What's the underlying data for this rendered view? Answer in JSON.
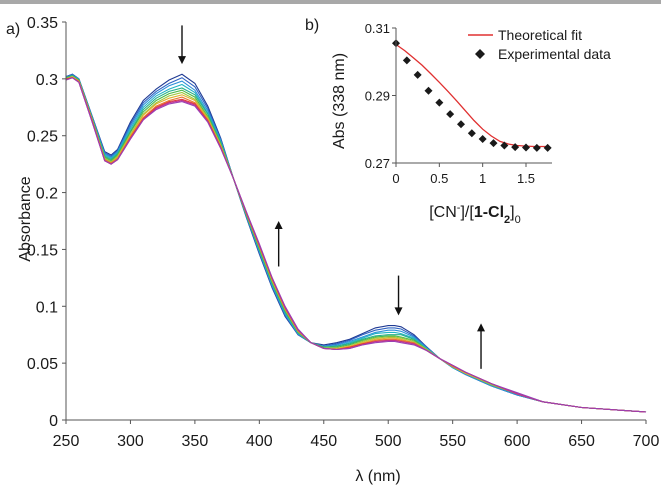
{
  "chart_data": [
    {
      "panel_label": "a)",
      "type": "line",
      "xlabel": "λ (nm)",
      "ylabel": "Absorbance",
      "xlim": [
        250,
        700
      ],
      "ylim": [
        0,
        0.35
      ],
      "xticks": [
        250,
        300,
        350,
        400,
        450,
        500,
        550,
        600,
        650,
        700
      ],
      "yticks": [
        0,
        0.05,
        0.1,
        0.15,
        0.2,
        0.25,
        0.3,
        0.35
      ],
      "xtick_labels": [
        "250",
        "300",
        "350",
        "400",
        "450",
        "500",
        "550",
        "600",
        "650",
        "700"
      ],
      "ytick_labels": [
        "0",
        "0.05",
        "0.1",
        "0.15",
        "0.2",
        "0.25",
        "0.3",
        "0.35"
      ],
      "grid": false,
      "x": [
        250,
        255,
        260,
        270,
        280,
        285,
        290,
        300,
        310,
        320,
        330,
        340,
        350,
        360,
        370,
        380,
        390,
        400,
        410,
        420,
        430,
        440,
        450,
        460,
        470,
        480,
        490,
        500,
        505,
        510,
        520,
        530,
        540,
        550,
        560,
        580,
        600,
        620,
        650,
        700
      ],
      "series": [
        {
          "color": "#1f3a93",
          "values": [
            0.302,
            0.304,
            0.3,
            0.268,
            0.236,
            0.233,
            0.238,
            0.262,
            0.281,
            0.291,
            0.299,
            0.304,
            0.296,
            0.276,
            0.248,
            0.212,
            0.178,
            0.146,
            0.116,
            0.091,
            0.075,
            0.068,
            0.066,
            0.068,
            0.071,
            0.076,
            0.081,
            0.083,
            0.083,
            0.082,
            0.075,
            0.064,
            0.054,
            0.046,
            0.04,
            0.03,
            0.022,
            0.016,
            0.011,
            0.007
          ]
        },
        {
          "color": "#2e63c4",
          "values": [
            0.302,
            0.304,
            0.3,
            0.268,
            0.235,
            0.232,
            0.237,
            0.26,
            0.279,
            0.289,
            0.296,
            0.301,
            0.293,
            0.274,
            0.247,
            0.212,
            0.179,
            0.147,
            0.117,
            0.092,
            0.075,
            0.068,
            0.065,
            0.067,
            0.07,
            0.075,
            0.079,
            0.081,
            0.081,
            0.08,
            0.074,
            0.064,
            0.054,
            0.046,
            0.04,
            0.03,
            0.022,
            0.016,
            0.011,
            0.007
          ]
        },
        {
          "color": "#2b8fd9",
          "values": [
            0.301,
            0.303,
            0.3,
            0.267,
            0.234,
            0.231,
            0.236,
            0.258,
            0.277,
            0.287,
            0.294,
            0.298,
            0.29,
            0.272,
            0.246,
            0.212,
            0.179,
            0.148,
            0.118,
            0.093,
            0.076,
            0.068,
            0.065,
            0.066,
            0.069,
            0.073,
            0.077,
            0.079,
            0.079,
            0.078,
            0.073,
            0.063,
            0.054,
            0.046,
            0.04,
            0.03,
            0.022,
            0.016,
            0.011,
            0.007
          ]
        },
        {
          "color": "#22b3c6",
          "values": [
            0.301,
            0.303,
            0.299,
            0.267,
            0.233,
            0.23,
            0.235,
            0.256,
            0.275,
            0.285,
            0.291,
            0.295,
            0.288,
            0.27,
            0.245,
            0.212,
            0.18,
            0.149,
            0.119,
            0.094,
            0.076,
            0.068,
            0.064,
            0.065,
            0.068,
            0.072,
            0.076,
            0.077,
            0.077,
            0.076,
            0.072,
            0.063,
            0.054,
            0.046,
            0.041,
            0.031,
            0.023,
            0.016,
            0.011,
            0.007
          ]
        },
        {
          "color": "#27b08a",
          "values": [
            0.301,
            0.303,
            0.299,
            0.266,
            0.232,
            0.229,
            0.234,
            0.254,
            0.273,
            0.283,
            0.289,
            0.292,
            0.286,
            0.269,
            0.244,
            0.212,
            0.18,
            0.15,
            0.12,
            0.095,
            0.077,
            0.068,
            0.064,
            0.065,
            0.067,
            0.071,
            0.074,
            0.075,
            0.075,
            0.075,
            0.071,
            0.062,
            0.054,
            0.047,
            0.041,
            0.031,
            0.023,
            0.016,
            0.011,
            0.007
          ]
        },
        {
          "color": "#4cb848",
          "values": [
            0.301,
            0.302,
            0.299,
            0.266,
            0.231,
            0.228,
            0.233,
            0.253,
            0.271,
            0.281,
            0.287,
            0.29,
            0.284,
            0.267,
            0.243,
            0.212,
            0.181,
            0.151,
            0.121,
            0.096,
            0.077,
            0.068,
            0.064,
            0.064,
            0.066,
            0.07,
            0.073,
            0.074,
            0.074,
            0.073,
            0.07,
            0.062,
            0.054,
            0.047,
            0.041,
            0.031,
            0.023,
            0.016,
            0.011,
            0.007
          ]
        },
        {
          "color": "#9bc73d",
          "values": [
            0.3,
            0.302,
            0.298,
            0.265,
            0.23,
            0.227,
            0.232,
            0.251,
            0.269,
            0.279,
            0.285,
            0.288,
            0.282,
            0.266,
            0.242,
            0.212,
            0.181,
            0.152,
            0.122,
            0.097,
            0.078,
            0.068,
            0.063,
            0.063,
            0.065,
            0.069,
            0.072,
            0.073,
            0.073,
            0.072,
            0.069,
            0.062,
            0.054,
            0.047,
            0.041,
            0.031,
            0.023,
            0.016,
            0.011,
            0.007
          ]
        },
        {
          "color": "#e0b12f",
          "values": [
            0.3,
            0.302,
            0.298,
            0.265,
            0.229,
            0.226,
            0.231,
            0.25,
            0.268,
            0.278,
            0.283,
            0.286,
            0.281,
            0.265,
            0.241,
            0.212,
            0.182,
            0.153,
            0.123,
            0.098,
            0.078,
            0.068,
            0.063,
            0.063,
            0.065,
            0.068,
            0.071,
            0.072,
            0.072,
            0.071,
            0.068,
            0.061,
            0.054,
            0.047,
            0.041,
            0.032,
            0.023,
            0.016,
            0.011,
            0.007
          ]
        },
        {
          "color": "#e8772e",
          "values": [
            0.3,
            0.301,
            0.298,
            0.264,
            0.229,
            0.226,
            0.23,
            0.249,
            0.266,
            0.276,
            0.281,
            0.284,
            0.279,
            0.264,
            0.24,
            0.212,
            0.182,
            0.153,
            0.124,
            0.098,
            0.079,
            0.068,
            0.063,
            0.062,
            0.064,
            0.067,
            0.07,
            0.071,
            0.071,
            0.07,
            0.068,
            0.061,
            0.054,
            0.047,
            0.042,
            0.032,
            0.023,
            0.016,
            0.011,
            0.007
          ]
        },
        {
          "color": "#e23a3a",
          "values": [
            0.3,
            0.301,
            0.297,
            0.264,
            0.228,
            0.225,
            0.229,
            0.248,
            0.265,
            0.275,
            0.28,
            0.282,
            0.278,
            0.263,
            0.24,
            0.212,
            0.182,
            0.154,
            0.124,
            0.099,
            0.079,
            0.068,
            0.063,
            0.062,
            0.064,
            0.067,
            0.069,
            0.07,
            0.07,
            0.069,
            0.067,
            0.061,
            0.054,
            0.048,
            0.042,
            0.032,
            0.023,
            0.016,
            0.011,
            0.007
          ]
        },
        {
          "color": "#c2338c",
          "values": [
            0.299,
            0.301,
            0.297,
            0.263,
            0.228,
            0.225,
            0.229,
            0.247,
            0.264,
            0.274,
            0.279,
            0.281,
            0.277,
            0.262,
            0.239,
            0.212,
            0.183,
            0.154,
            0.125,
            0.099,
            0.079,
            0.068,
            0.063,
            0.062,
            0.063,
            0.066,
            0.069,
            0.07,
            0.07,
            0.069,
            0.067,
            0.061,
            0.054,
            0.048,
            0.042,
            0.032,
            0.023,
            0.016,
            0.011,
            0.007
          ]
        },
        {
          "color": "#9a3fb3",
          "values": [
            0.299,
            0.301,
            0.297,
            0.263,
            0.228,
            0.225,
            0.229,
            0.247,
            0.264,
            0.273,
            0.278,
            0.28,
            0.276,
            0.262,
            0.239,
            0.212,
            0.183,
            0.155,
            0.125,
            0.1,
            0.08,
            0.068,
            0.063,
            0.062,
            0.063,
            0.066,
            0.068,
            0.069,
            0.069,
            0.068,
            0.066,
            0.061,
            0.054,
            0.048,
            0.042,
            0.032,
            0.024,
            0.016,
            0.011,
            0.007
          ]
        }
      ],
      "arrows": [
        {
          "x": 340,
          "y_from": 0.347,
          "y_to": 0.313,
          "direction": "down"
        },
        {
          "x": 415,
          "y_from": 0.135,
          "y_to": 0.175,
          "direction": "up"
        },
        {
          "x": 508,
          "y_from": 0.127,
          "y_to": 0.092,
          "direction": "down"
        },
        {
          "x": 572,
          "y_from": 0.045,
          "y_to": 0.085,
          "direction": "up"
        }
      ]
    },
    {
      "panel_label": "b)",
      "type": "scatter",
      "xlabel_parts": [
        "[CN",
        "-",
        "]/[",
        "1-Cl",
        "2",
        "]",
        "0"
      ],
      "ylabel": "Abs (338 nm)",
      "xlim": [
        0,
        1.8
      ],
      "ylim": [
        0.27,
        0.31
      ],
      "xticks": [
        0,
        0.5,
        1,
        1.5
      ],
      "yticks": [
        0.27,
        0.29,
        0.31
      ],
      "xtick_labels": [
        "0",
        "0.5",
        "1",
        "1.5"
      ],
      "ytick_labels": [
        "0.27",
        "0.29",
        "0.31"
      ],
      "legend": {
        "position": "top-right",
        "entries": [
          "Theoretical fit",
          "Experimental data"
        ]
      },
      "series": [
        {
          "name": "Theoretical fit",
          "kind": "line",
          "color": "#e03030",
          "x": [
            0,
            0.1,
            0.2,
            0.3,
            0.4,
            0.5,
            0.6,
            0.7,
            0.8,
            0.9,
            1.0,
            1.1,
            1.2,
            1.3,
            1.4,
            1.5,
            1.6,
            1.75
          ],
          "y": [
            0.3051,
            0.3033,
            0.3012,
            0.299,
            0.2965,
            0.2939,
            0.2912,
            0.2884,
            0.2855,
            0.2826,
            0.28,
            0.278,
            0.2764,
            0.2756,
            0.2752,
            0.275,
            0.2749,
            0.2749
          ]
        },
        {
          "name": "Experimental data",
          "kind": "points",
          "color": "#1a1a1a",
          "x": [
            0,
            0.125,
            0.25,
            0.375,
            0.5,
            0.625,
            0.75,
            0.875,
            1.0,
            1.125,
            1.25,
            1.375,
            1.5,
            1.625,
            1.75
          ],
          "y": [
            0.3055,
            0.3004,
            0.2961,
            0.2914,
            0.2879,
            0.2845,
            0.2815,
            0.2788,
            0.2771,
            0.2759,
            0.2752,
            0.2747,
            0.2746,
            0.2745,
            0.2745
          ]
        }
      ]
    }
  ]
}
